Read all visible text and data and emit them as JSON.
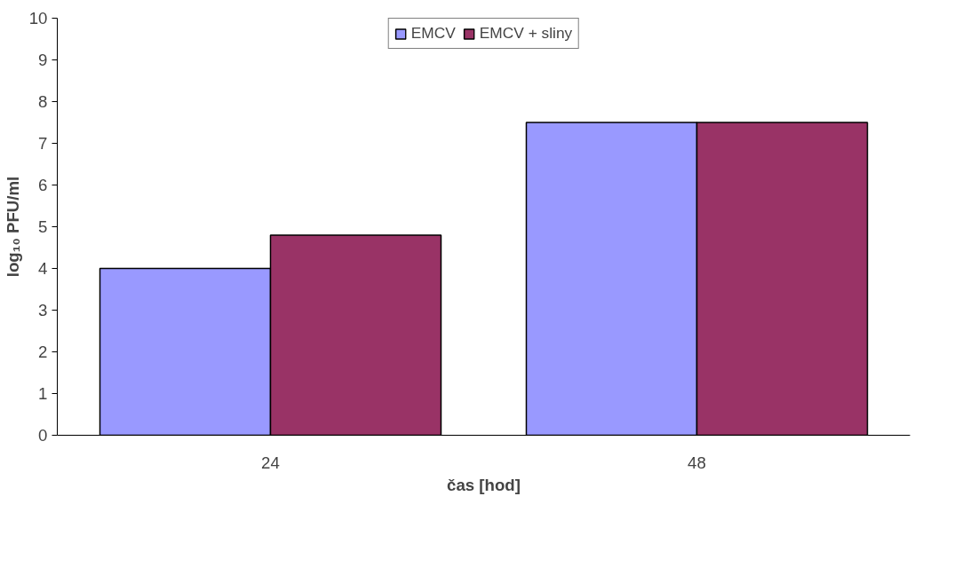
{
  "chart_data": {
    "type": "bar",
    "xlabel": "čas [hod]",
    "ylabel": "log₁₀ PFU/ml",
    "categories": [
      "24",
      "48"
    ],
    "series": [
      {
        "name": "EMCV",
        "color": "#9999ff",
        "values": [
          4.0,
          7.5
        ]
      },
      {
        "name": "EMCV + sliny",
        "color": "#993366",
        "values": [
          4.8,
          7.5
        ]
      }
    ],
    "ylim": [
      0,
      10
    ],
    "yticks": [
      0,
      1,
      2,
      3,
      4,
      5,
      6,
      7,
      8,
      9,
      10
    ],
    "grid": false,
    "legend": "top"
  }
}
